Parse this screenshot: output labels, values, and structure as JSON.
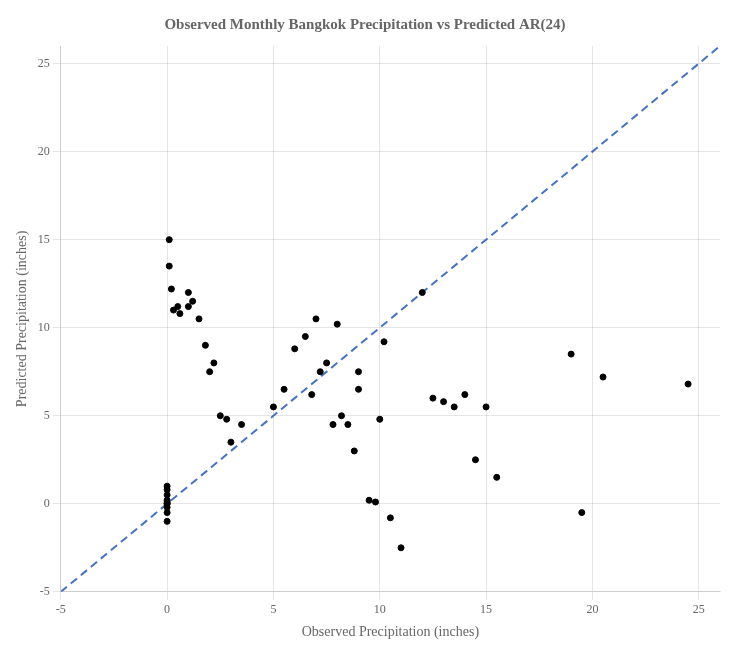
{
  "chart_data": {
    "type": "scatter",
    "title": "Observed Monthly Bangkok Precipitation vs Predicted AR(24)",
    "xlabel": "Observed Precipitation (inches)",
    "ylabel": "Predicted Precipitation (inches)",
    "xlim": [
      -5,
      26
    ],
    "ylim": [
      -5,
      26
    ],
    "xticks": [
      -5,
      0,
      5,
      10,
      15,
      20,
      25
    ],
    "yticks": [
      -5,
      0,
      5,
      10,
      15,
      20,
      25
    ],
    "grid": true,
    "series": [
      {
        "type": "scatter",
        "color": "black",
        "marker": "circle",
        "x": [
          0.0,
          0.0,
          0.0,
          0.0,
          0.0,
          0.0,
          0.0,
          0.0,
          0.0,
          0.0,
          0.1,
          0.1,
          0.2,
          0.3,
          0.5,
          0.6,
          1.0,
          1.0,
          1.2,
          1.5,
          1.8,
          2.0,
          2.2,
          2.5,
          2.8,
          3.0,
          3.5,
          5.0,
          5.5,
          6.0,
          6.5,
          6.8,
          7.0,
          7.2,
          7.5,
          7.8,
          8.0,
          8.2,
          8.5,
          8.8,
          9.0,
          9.0,
          9.5,
          9.8,
          10.0,
          10.2,
          10.5,
          11.0,
          12.0,
          12.5,
          13.0,
          13.5,
          14.0,
          14.5,
          15.0,
          15.5,
          19.0,
          19.5,
          20.5,
          24.5
        ],
        "values": [
          1.0,
          0.8,
          0.5,
          0.2,
          0.1,
          0.0,
          0.0,
          -0.2,
          -0.5,
          -1.0,
          15.0,
          13.5,
          12.2,
          11.0,
          11.2,
          10.8,
          12.0,
          11.2,
          11.5,
          10.5,
          9.0,
          7.5,
          8.0,
          5.0,
          4.8,
          3.5,
          4.5,
          5.5,
          6.5,
          8.8,
          9.5,
          6.2,
          10.5,
          7.5,
          8.0,
          4.5,
          10.2,
          5.0,
          4.5,
          3.0,
          7.5,
          6.5,
          0.2,
          0.1,
          4.8,
          9.2,
          -0.8,
          -2.5,
          12.0,
          6.0,
          5.8,
          5.5,
          6.2,
          2.5,
          5.5,
          1.5,
          8.5,
          -0.5,
          7.2,
          6.8
        ]
      },
      {
        "type": "line",
        "color": "#4472C4",
        "line_style": "dashed",
        "x": [
          -5,
          26
        ],
        "values": [
          -5,
          26
        ]
      }
    ]
  }
}
